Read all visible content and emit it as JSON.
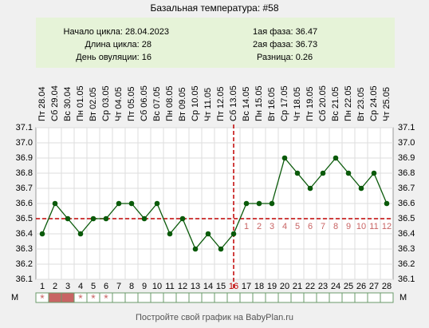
{
  "header": {
    "title": "Базальная температура: #58"
  },
  "info": {
    "left": [
      "Начало цикла: 28.04.2023",
      "Длина цикла: 28",
      "День овуляции: 16"
    ],
    "right": [
      "1ая фаза: 36.47",
      "2ая фаза: 36.73",
      "Разница: 0.26"
    ]
  },
  "chart_data": {
    "type": "line",
    "color": "#0a5a0a",
    "categories": [
      1,
      2,
      3,
      4,
      5,
      6,
      7,
      8,
      9,
      10,
      11,
      12,
      13,
      14,
      15,
      16,
      17,
      18,
      19,
      20,
      21,
      22,
      23,
      24,
      25,
      26,
      27,
      28
    ],
    "dates": [
      "Пт 28.04",
      "Сб 29.04",
      "Вс 30.04",
      "Пн 01.05",
      "Вт 02.05",
      "Ср 03.05",
      "Чт 04.05",
      "Пт 05.05",
      "Сб 06.05",
      "Вс 07.05",
      "Пн 08.05",
      "Вт 09.05",
      "Ср 10.05",
      "Чт 11.05",
      "Пт 12.05",
      "Сб 13.05",
      "Вс 14.05",
      "Пн 15.05",
      "Вт 16.05",
      "Ср 17.05",
      "Чт 18.05",
      "Пт 19.05",
      "Сб 20.05",
      "Вс 21.05",
      "Пн 22.05",
      "Вт 23.05",
      "Ср 24.05",
      "Чт 25.05"
    ],
    "values": [
      36.4,
      36.6,
      36.5,
      36.4,
      36.5,
      36.5,
      36.6,
      36.6,
      36.5,
      36.6,
      36.4,
      36.5,
      36.3,
      36.4,
      36.3,
      36.4,
      36.6,
      36.6,
      36.6,
      36.9,
      36.8,
      36.7,
      36.8,
      36.9,
      36.8,
      36.7,
      36.8,
      36.6
    ],
    "ylim": [
      36.1,
      37.1
    ],
    "yticks": [
      36.1,
      36.2,
      36.3,
      36.4,
      36.5,
      36.6,
      36.7,
      36.8,
      36.9,
      {
        "value": 37.0,
        "label": "37.0"
      },
      37.1
    ],
    "grid": true,
    "coverline": 36.5,
    "ovulation_day": 16,
    "marker_color": "#c00000",
    "phase2_labels": [
      1,
      2,
      3,
      4,
      5,
      6,
      7,
      8,
      9,
      10,
      11,
      12
    ],
    "menstruation": {
      "label": "М",
      "filled_days": [
        2,
        3
      ],
      "fill": "#c86464",
      "mark": "*",
      "mark_days": [
        1,
        4,
        5,
        6
      ]
    }
  },
  "footer": "Постройте свой график на BabyPlan.ru"
}
